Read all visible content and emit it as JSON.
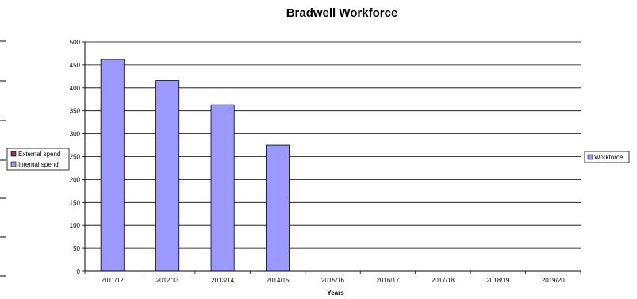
{
  "chart_data": {
    "type": "bar",
    "title": "Bradwell Workforce",
    "xlabel": "Years",
    "ylabel": "",
    "categories": [
      "2011/12",
      "2012/13",
      "2013/14",
      "2014/15",
      "2015/16",
      "2016/17",
      "2017/18",
      "2018/19",
      "2019/20"
    ],
    "series": [
      {
        "name": "Workforce",
        "color": "#9999ff",
        "values": [
          462,
          416,
          363,
          275,
          null,
          null,
          null,
          null,
          null
        ]
      }
    ],
    "ylim": [
      0,
      500
    ],
    "yticks": [
      0,
      50,
      100,
      150,
      200,
      250,
      300,
      350,
      400,
      450,
      500
    ],
    "grid": true,
    "legend_position": "right"
  },
  "left_legend": {
    "items": [
      {
        "label": "External spend",
        "color": "#993366"
      },
      {
        "label": "Internal spend",
        "color": "#9999ff"
      }
    ]
  }
}
